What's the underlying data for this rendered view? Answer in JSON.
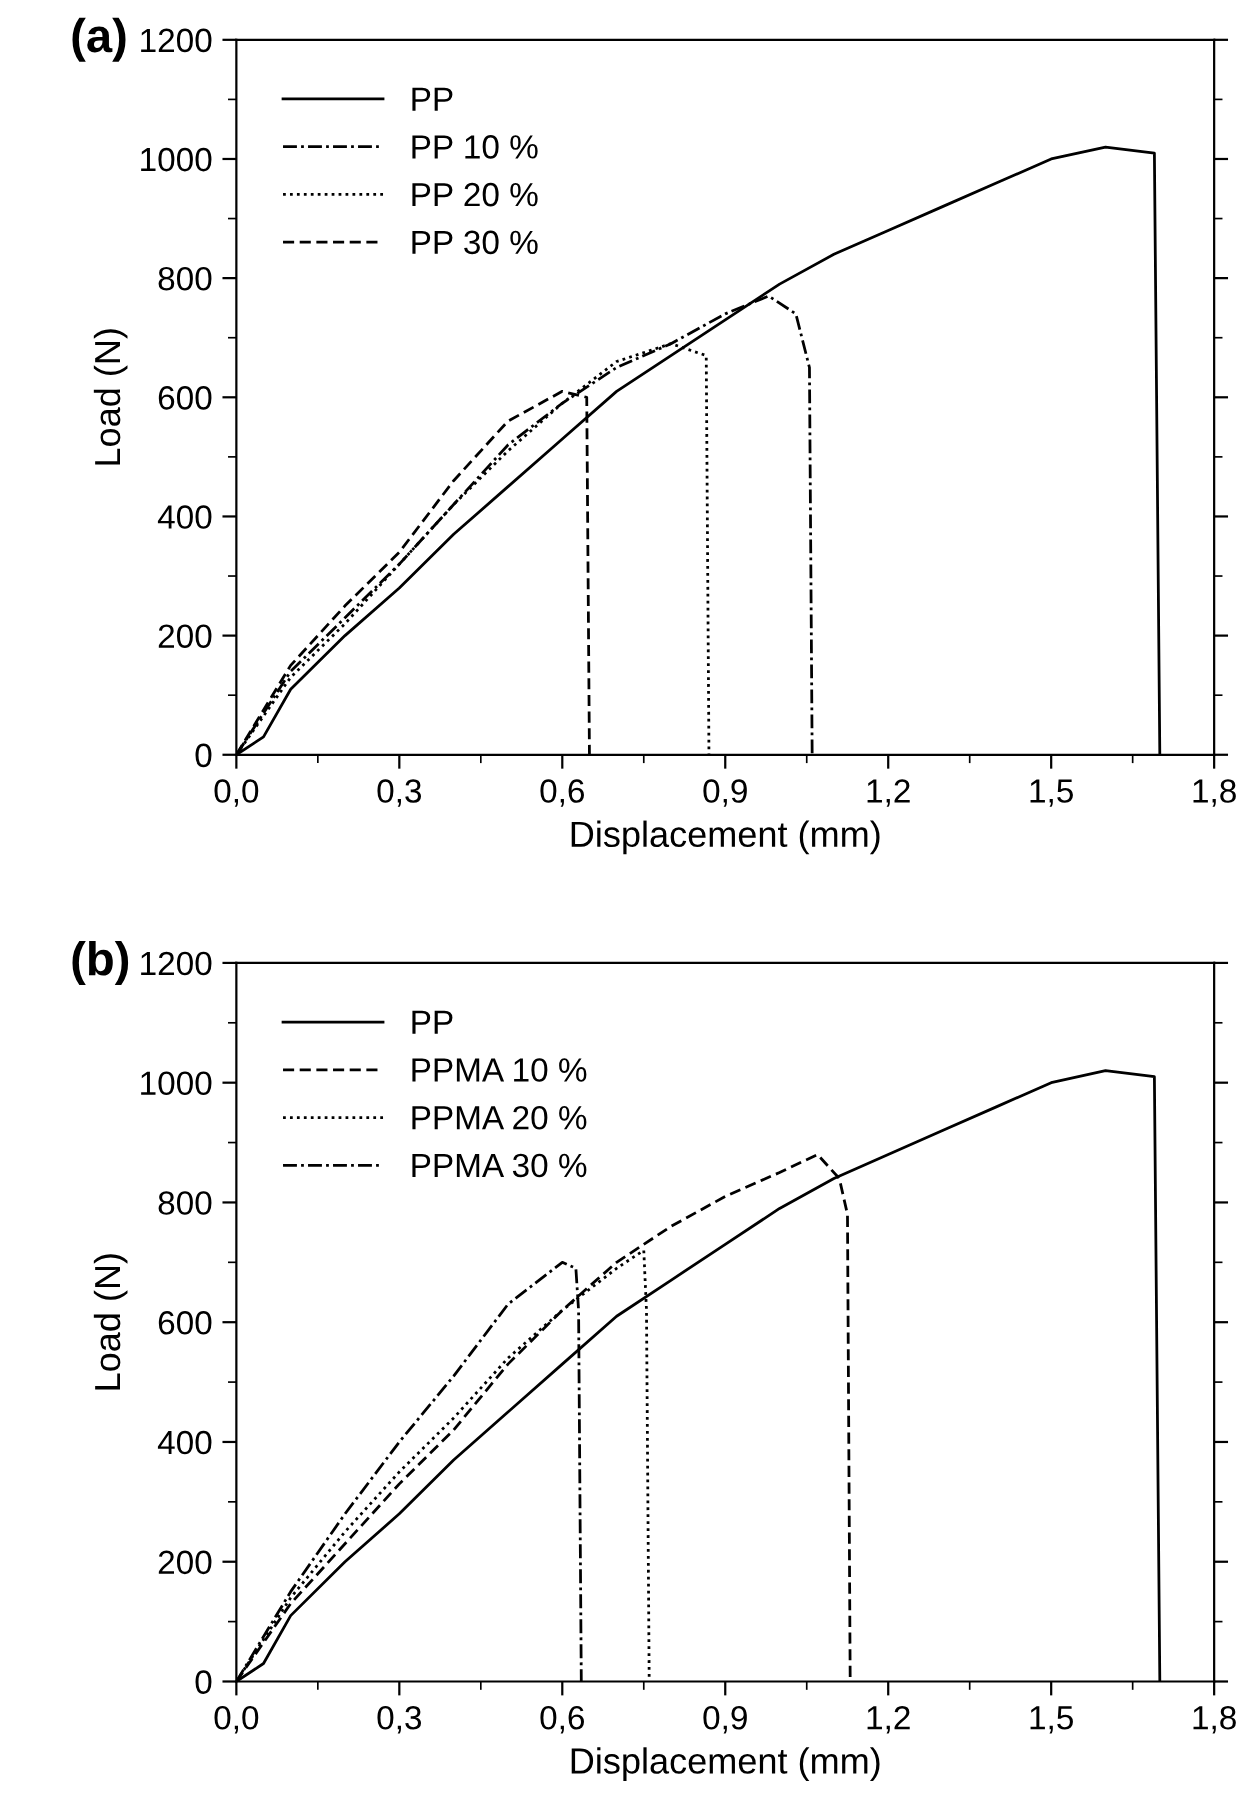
{
  "chart_data": [
    {
      "type": "line",
      "title": "(a)",
      "xlabel": "Displacement (mm)",
      "ylabel": "Load (N)",
      "xlim": [
        0,
        1.8
      ],
      "ylim": [
        0,
        1200
      ],
      "xticks": [
        {
          "value": 0,
          "label": "0,0"
        },
        {
          "value": 0.3,
          "label": "0,3"
        },
        {
          "value": 0.6,
          "label": "0,6"
        },
        {
          "value": 0.9,
          "label": "0,9"
        },
        {
          "value": 1.2,
          "label": "1,2"
        },
        {
          "value": 1.5,
          "label": "1,5"
        },
        {
          "value": 1.8,
          "label": "1,8"
        }
      ],
      "yticks": [
        0,
        200,
        400,
        600,
        800,
        1000,
        1200
      ],
      "legend": "top left",
      "grid": false,
      "marker": "none",
      "series": [
        {
          "name": "PP",
          "color": "#000000",
          "line_style": "solid",
          "x": [
            0,
            0.05,
            0.1,
            0.2,
            0.3,
            0.4,
            0.5,
            0.6,
            0.7,
            0.8,
            0.9,
            1.0,
            1.1,
            1.2,
            1.3,
            1.4,
            1.5,
            1.6,
            1.69,
            1.7
          ],
          "values": [
            0,
            30,
            110,
            200,
            280,
            370,
            450,
            530,
            610,
            670,
            730,
            790,
            840,
            880,
            920,
            960,
            1000,
            1020,
            1010,
            0
          ]
        },
        {
          "name": "PP 10 %",
          "color": "#000000",
          "line_style": "dashdot",
          "x": [
            0,
            0.1,
            0.2,
            0.3,
            0.4,
            0.5,
            0.6,
            0.7,
            0.8,
            0.9,
            0.98,
            1.03,
            1.055,
            1.06
          ],
          "values": [
            0,
            140,
            230,
            320,
            420,
            520,
            590,
            650,
            690,
            740,
            770,
            740,
            650,
            0
          ]
        },
        {
          "name": "PP 20 %",
          "color": "#000000",
          "line_style": "dotted",
          "x": [
            0,
            0.1,
            0.2,
            0.3,
            0.4,
            0.5,
            0.6,
            0.7,
            0.8,
            0.865,
            0.87
          ],
          "values": [
            0,
            130,
            220,
            320,
            420,
            510,
            590,
            660,
            690,
            670,
            0
          ]
        },
        {
          "name": "PP 30 %",
          "color": "#000000",
          "line_style": "dashed",
          "x": [
            0,
            0.1,
            0.2,
            0.3,
            0.4,
            0.5,
            0.6,
            0.645,
            0.65
          ],
          "values": [
            0,
            150,
            250,
            340,
            460,
            560,
            610,
            600,
            0
          ]
        }
      ]
    },
    {
      "type": "line",
      "title": "(b)",
      "xlabel": "Displacement (mm)",
      "ylabel": "Load (N)",
      "xlim": [
        0,
        1.8
      ],
      "ylim": [
        0,
        1200
      ],
      "xticks": [
        {
          "value": 0,
          "label": "0,0"
        },
        {
          "value": 0.3,
          "label": "0,3"
        },
        {
          "value": 0.6,
          "label": "0,6"
        },
        {
          "value": 0.9,
          "label": "0,9"
        },
        {
          "value": 1.2,
          "label": "1,2"
        },
        {
          "value": 1.5,
          "label": "1,5"
        },
        {
          "value": 1.8,
          "label": "1,8"
        }
      ],
      "yticks": [
        0,
        200,
        400,
        600,
        800,
        1000,
        1200
      ],
      "legend": "top left",
      "grid": false,
      "marker": "none",
      "series": [
        {
          "name": "PP",
          "color": "#000000",
          "line_style": "solid",
          "x": [
            0,
            0.05,
            0.1,
            0.2,
            0.3,
            0.4,
            0.5,
            0.6,
            0.7,
            0.8,
            0.9,
            1.0,
            1.1,
            1.2,
            1.3,
            1.4,
            1.5,
            1.6,
            1.69,
            1.7
          ],
          "values": [
            0,
            30,
            110,
            200,
            280,
            370,
            450,
            530,
            610,
            670,
            730,
            790,
            840,
            880,
            920,
            960,
            1000,
            1020,
            1010,
            0
          ]
        },
        {
          "name": "PPMA 10 %",
          "color": "#000000",
          "line_style": "dashed",
          "x": [
            0,
            0.1,
            0.2,
            0.3,
            0.4,
            0.5,
            0.6,
            0.7,
            0.8,
            0.9,
            1.0,
            1.07,
            1.11,
            1.125,
            1.13
          ],
          "values": [
            0,
            130,
            230,
            330,
            420,
            530,
            620,
            700,
            760,
            810,
            850,
            880,
            840,
            780,
            0
          ]
        },
        {
          "name": "PPMA 20 %",
          "color": "#000000",
          "line_style": "dotted",
          "x": [
            0,
            0.1,
            0.2,
            0.3,
            0.4,
            0.5,
            0.6,
            0.7,
            0.75,
            0.755,
            0.76
          ],
          "values": [
            0,
            140,
            250,
            350,
            440,
            540,
            620,
            690,
            720,
            620,
            0
          ]
        },
        {
          "name": "PPMA 30 %",
          "color": "#000000",
          "line_style": "dashdot",
          "x": [
            0,
            0.1,
            0.2,
            0.3,
            0.4,
            0.5,
            0.6,
            0.625,
            0.63,
            0.635
          ],
          "values": [
            0,
            150,
            280,
            400,
            510,
            630,
            700,
            690,
            620,
            0
          ]
        }
      ]
    }
  ]
}
